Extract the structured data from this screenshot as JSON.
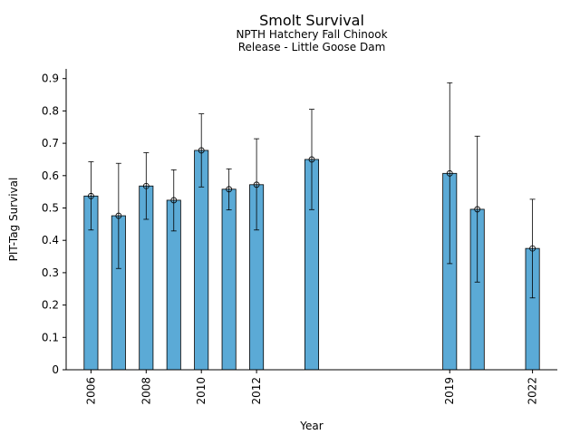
{
  "chart_data": {
    "type": "bar",
    "title": "Smolt Survival",
    "subtitle_lines": [
      "NPTH Hatchery Fall Chinook",
      "Release - Little Goose Dam"
    ],
    "xlabel": "Year",
    "ylabel": "PIT-Tag Survival",
    "ylim": [
      0,
      0.93
    ],
    "xlim": [
      2005.1,
      2022.9
    ],
    "yticks": [
      0,
      0.1,
      0.2,
      0.3,
      0.4,
      0.5,
      0.6,
      0.7,
      0.8,
      0.9
    ],
    "ytick_labels": [
      "0",
      "0.1",
      "0.2",
      "0.3",
      "0.4",
      "0.5",
      "0.6",
      "0.7",
      "0.8",
      "0.9"
    ],
    "xticks": [
      2006,
      2008,
      2010,
      2012,
      2019,
      2022
    ],
    "xtick_labels": [
      "2006",
      "2008",
      "2010",
      "2012",
      "2019",
      "2022"
    ],
    "bar_color": "#5BAAD6",
    "bar_width_years": 0.5,
    "points": [
      {
        "year": 2006,
        "value": 0.537,
        "lower": 0.432,
        "upper": 0.643
      },
      {
        "year": 2007,
        "value": 0.476,
        "lower": 0.313,
        "upper": 0.638
      },
      {
        "year": 2008,
        "value": 0.568,
        "lower": 0.465,
        "upper": 0.671
      },
      {
        "year": 2009,
        "value": 0.524,
        "lower": 0.429,
        "upper": 0.618
      },
      {
        "year": 2010,
        "value": 0.678,
        "lower": 0.565,
        "upper": 0.791
      },
      {
        "year": 2011,
        "value": 0.558,
        "lower": 0.494,
        "upper": 0.621
      },
      {
        "year": 2012,
        "value": 0.572,
        "lower": 0.432,
        "upper": 0.714
      },
      {
        "year": 2014,
        "value": 0.65,
        "lower": 0.495,
        "upper": 0.805
      },
      {
        "year": 2019,
        "value": 0.607,
        "lower": 0.328,
        "upper": 0.887
      },
      {
        "year": 2020,
        "value": 0.496,
        "lower": 0.271,
        "upper": 0.722
      },
      {
        "year": 2022,
        "value": 0.375,
        "lower": 0.222,
        "upper": 0.527
      }
    ]
  }
}
